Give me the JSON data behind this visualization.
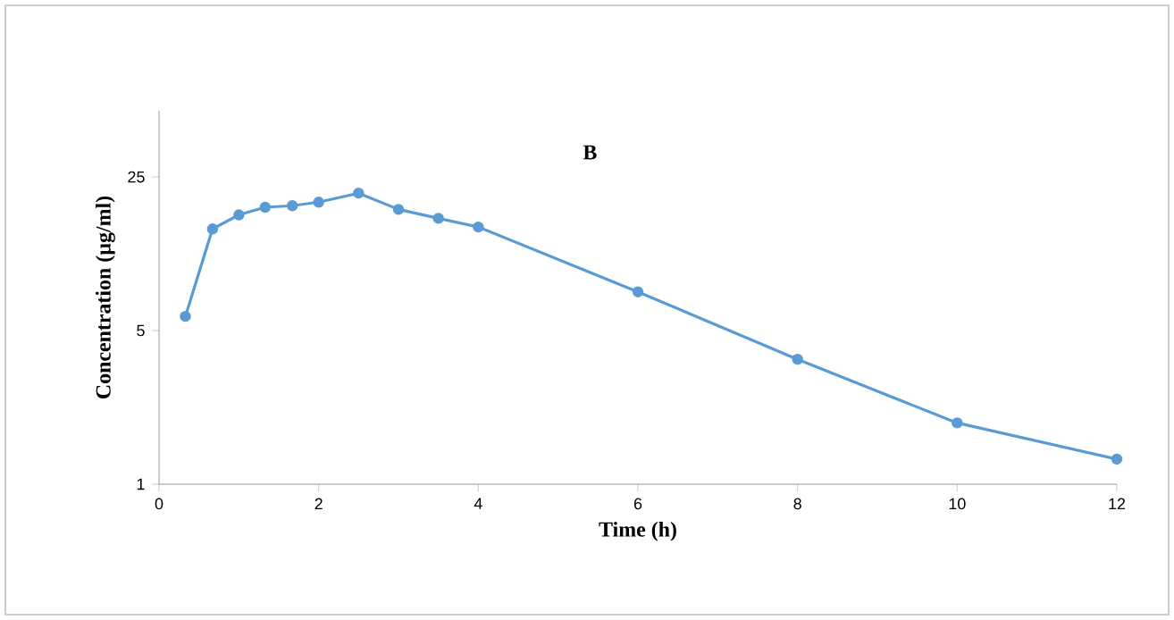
{
  "chart_data": {
    "type": "line",
    "title": "B",
    "xlabel": "Time (h)",
    "ylabel": "Concentration (µg/ml)",
    "x": [
      0.33,
      0.67,
      1,
      1.33,
      1.67,
      2,
      2.5,
      3,
      3.5,
      4,
      6,
      8,
      10,
      12
    ],
    "series": [
      {
        "color": "#5b9bd5",
        "values": [
          5.8,
          14.5,
          16.8,
          18.2,
          18.5,
          19.2,
          21.1,
          17.8,
          16.2,
          14.8,
          7.5,
          3.7,
          1.9,
          1.3
        ]
      }
    ],
    "xlim": [
      0,
      12
    ],
    "ylim": [
      1,
      50
    ],
    "xticks": [
      0,
      2,
      4,
      6,
      8,
      10,
      12
    ],
    "yticks": [
      1,
      5,
      25
    ],
    "log": "y",
    "grid": false,
    "marker": "circle",
    "line_style": "solid"
  }
}
